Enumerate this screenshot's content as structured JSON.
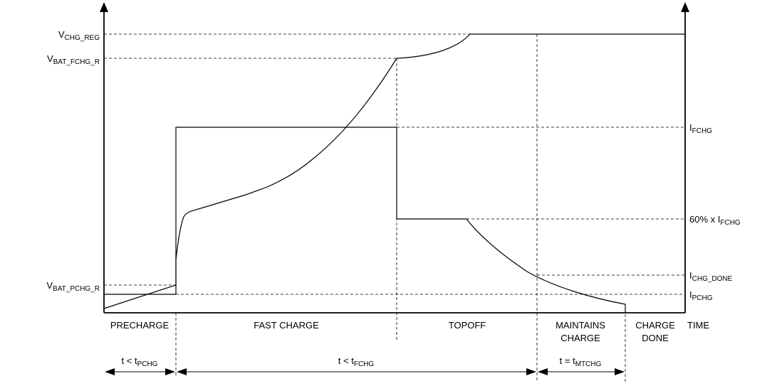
{
  "left_labels": {
    "v_chg_reg": {
      "main": "V",
      "sub": "CHG_REG"
    },
    "v_bat_fchg_r": {
      "main": "V",
      "sub": "BAT_FCHG_R"
    },
    "v_bat_pchg_r": {
      "main": "V",
      "sub": "BAT_PCHG_R"
    }
  },
  "right_labels": {
    "i_fchg": {
      "main": "I",
      "sub": "FCHG"
    },
    "i_60pct": {
      "main": "60% x I",
      "sub": "FCHG"
    },
    "i_chg_done": {
      "main": "I",
      "sub": "CHG_DONE"
    },
    "i_pchg": {
      "main": "I",
      "sub": "PCHG"
    }
  },
  "phases": {
    "precharge": "PRECHARGE",
    "fast_charge": "FAST CHARGE",
    "topoff": "TOPOFF",
    "maintains_line1": "MAINTAINS",
    "maintains_line2": "CHARGE",
    "done_line1": "CHARGE",
    "done_line2": "DONE",
    "time": "TIME"
  },
  "timers": {
    "pchg": {
      "main": "t < t",
      "sub": "PCHG"
    },
    "fchg": {
      "main": "t < t",
      "sub": "FCHG"
    },
    "mtchg": {
      "main": "t = t",
      "sub": "MTCHG"
    }
  }
}
